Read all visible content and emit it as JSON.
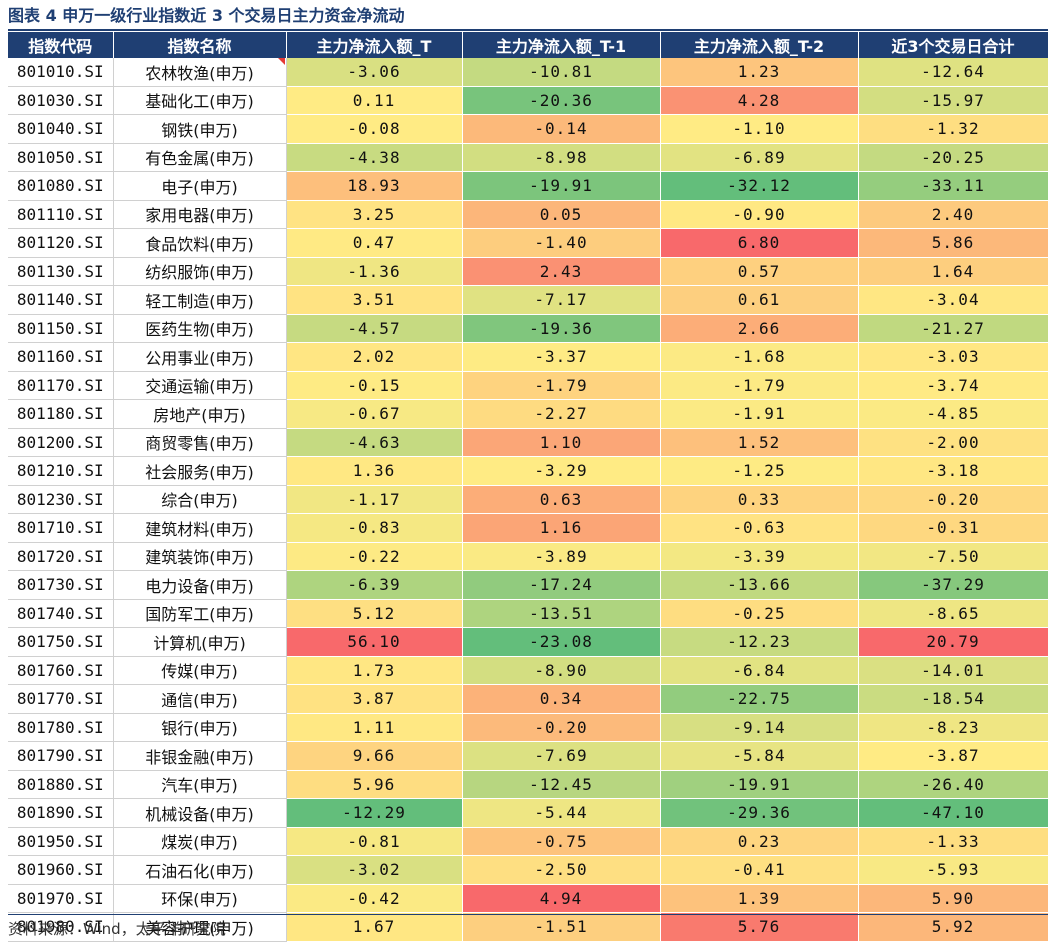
{
  "title": "图表 4  申万一级行业指数近 3 个交易日主力资金净流动",
  "source": "资料来源：Wind，太平洋研究院",
  "chart_data": {
    "type": "table",
    "title": "图表 4  申万一级行业指数近 3 个交易日主力资金净流动",
    "columns": [
      "指数代码",
      "指数名称",
      "主力净流入额_T",
      "主力净流入额_T-1",
      "主力净流入额_T-2",
      "近3个交易日合计"
    ],
    "rows": [
      {
        "code": "801010.SI",
        "name": "农林牧渔(申万)",
        "values": [
          "-3.06",
          "-10.81",
          "1.23",
          "-12.64"
        ]
      },
      {
        "code": "801030.SI",
        "name": "基础化工(申万)",
        "values": [
          "0.11",
          "-20.36",
          "4.28",
          "-15.97"
        ]
      },
      {
        "code": "801040.SI",
        "name": "钢铁(申万)",
        "values": [
          "-0.08",
          "-0.14",
          "-1.10",
          "-1.32"
        ]
      },
      {
        "code": "801050.SI",
        "name": "有色金属(申万)",
        "values": [
          "-4.38",
          "-8.98",
          "-6.89",
          "-20.25"
        ]
      },
      {
        "code": "801080.SI",
        "name": "电子(申万)",
        "values": [
          "18.93",
          "-19.91",
          "-32.12",
          "-33.11"
        ]
      },
      {
        "code": "801110.SI",
        "name": "家用电器(申万)",
        "values": [
          "3.25",
          "0.05",
          "-0.90",
          "2.40"
        ]
      },
      {
        "code": "801120.SI",
        "name": "食品饮料(申万)",
        "values": [
          "0.47",
          "-1.40",
          "6.80",
          "5.86"
        ]
      },
      {
        "code": "801130.SI",
        "name": "纺织服饰(申万)",
        "values": [
          "-1.36",
          "2.43",
          "0.57",
          "1.64"
        ]
      },
      {
        "code": "801140.SI",
        "name": "轻工制造(申万)",
        "values": [
          "3.51",
          "-7.17",
          "0.61",
          "-3.04"
        ]
      },
      {
        "code": "801150.SI",
        "name": "医药生物(申万)",
        "values": [
          "-4.57",
          "-19.36",
          "2.66",
          "-21.27"
        ]
      },
      {
        "code": "801160.SI",
        "name": "公用事业(申万)",
        "values": [
          "2.02",
          "-3.37",
          "-1.68",
          "-3.03"
        ]
      },
      {
        "code": "801170.SI",
        "name": "交通运输(申万)",
        "values": [
          "-0.15",
          "-1.79",
          "-1.79",
          "-3.74"
        ]
      },
      {
        "code": "801180.SI",
        "name": "房地产(申万)",
        "values": [
          "-0.67",
          "-2.27",
          "-1.91",
          "-4.85"
        ]
      },
      {
        "code": "801200.SI",
        "name": "商贸零售(申万)",
        "values": [
          "-4.63",
          "1.10",
          "1.52",
          "-2.00"
        ]
      },
      {
        "code": "801210.SI",
        "name": "社会服务(申万)",
        "values": [
          "1.36",
          "-3.29",
          "-1.25",
          "-3.18"
        ]
      },
      {
        "code": "801230.SI",
        "name": "综合(申万)",
        "values": [
          "-1.17",
          "0.63",
          "0.33",
          "-0.20"
        ]
      },
      {
        "code": "801710.SI",
        "name": "建筑材料(申万)",
        "values": [
          "-0.83",
          "1.16",
          "-0.63",
          "-0.31"
        ]
      },
      {
        "code": "801720.SI",
        "name": "建筑装饰(申万)",
        "values": [
          "-0.22",
          "-3.89",
          "-3.39",
          "-7.50"
        ]
      },
      {
        "code": "801730.SI",
        "name": "电力设备(申万)",
        "values": [
          "-6.39",
          "-17.24",
          "-13.66",
          "-37.29"
        ]
      },
      {
        "code": "801740.SI",
        "name": "国防军工(申万)",
        "values": [
          "5.12",
          "-13.51",
          "-0.25",
          "-8.65"
        ]
      },
      {
        "code": "801750.SI",
        "name": "计算机(申万)",
        "values": [
          "56.10",
          "-23.08",
          "-12.23",
          "20.79"
        ]
      },
      {
        "code": "801760.SI",
        "name": "传媒(申万)",
        "values": [
          "1.73",
          "-8.90",
          "-6.84",
          "-14.01"
        ]
      },
      {
        "code": "801770.SI",
        "name": "通信(申万)",
        "values": [
          "3.87",
          "0.34",
          "-22.75",
          "-18.54"
        ]
      },
      {
        "code": "801780.SI",
        "name": "银行(申万)",
        "values": [
          "1.11",
          "-0.20",
          "-9.14",
          "-8.23"
        ]
      },
      {
        "code": "801790.SI",
        "name": "非银金融(申万)",
        "values": [
          "9.66",
          "-7.69",
          "-5.84",
          "-3.87"
        ]
      },
      {
        "code": "801880.SI",
        "name": "汽车(申万)",
        "values": [
          "5.96",
          "-12.45",
          "-19.91",
          "-26.40"
        ]
      },
      {
        "code": "801890.SI",
        "name": "机械设备(申万)",
        "values": [
          "-12.29",
          "-5.44",
          "-29.36",
          "-47.10"
        ]
      },
      {
        "code": "801950.SI",
        "name": "煤炭(申万)",
        "values": [
          "-0.81",
          "-0.75",
          "0.23",
          "-1.33"
        ]
      },
      {
        "code": "801960.SI",
        "name": "石油石化(申万)",
        "values": [
          "-3.02",
          "-2.50",
          "-0.41",
          "-5.93"
        ]
      },
      {
        "code": "801970.SI",
        "name": "环保(申万)",
        "values": [
          "-0.42",
          "4.94",
          "1.39",
          "5.90"
        ]
      },
      {
        "code": "801980.SI",
        "name": "美容护理(申万)",
        "values": [
          "1.67",
          "-1.51",
          "5.76",
          "5.92"
        ]
      }
    ],
    "color_scale": {
      "positive": "#f8696b",
      "neutral": "#ffeb84",
      "negative": "#63be7b"
    }
  },
  "colors": {
    "header_bg": "#1f3f73",
    "header_text": "#ffffff"
  }
}
